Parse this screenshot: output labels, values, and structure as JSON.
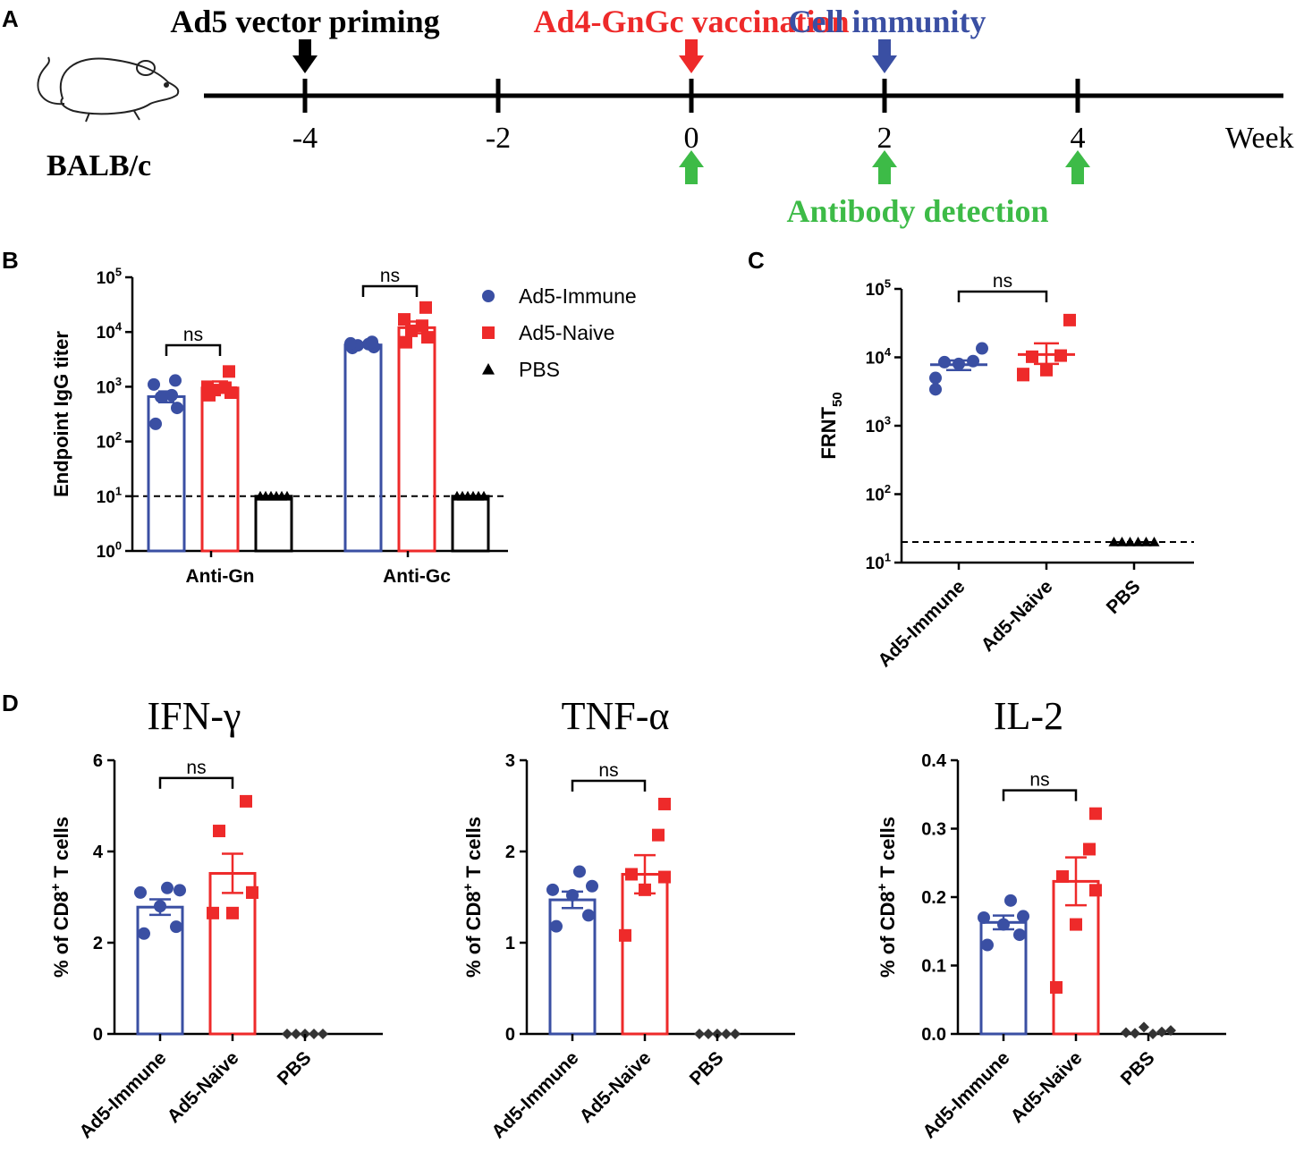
{
  "colors": {
    "immune": "#3a4fa3",
    "naive": "#ee2a2a",
    "pbs": "#000000",
    "antibody": "#3dbb47",
    "priming": "#000000"
  },
  "panel_labels": {
    "a": "A",
    "b": "B",
    "c": "C",
    "d": "D"
  },
  "timeline": {
    "mouse_label": "BALB/c",
    "week_label": "Week",
    "ticks": [
      -4,
      -2,
      0,
      2,
      4
    ],
    "tick_labels": [
      "-4",
      "-2",
      "0",
      "2",
      "4"
    ],
    "events": {
      "priming": {
        "label": "Ad5 vector priming",
        "week": -4
      },
      "vaccination": {
        "label": "Ad4-GnGc vaccination",
        "week": 0
      },
      "cell": {
        "label": "Cell immunity",
        "week": 2
      },
      "antibody": {
        "label": "Antibody detection",
        "weeks": [
          0,
          2,
          4
        ]
      }
    }
  },
  "chart_data": [
    {
      "id": "B",
      "type": "bar",
      "ylabel": "Endpoint IgG titer",
      "yscale": "log",
      "ylim": [
        1,
        100000
      ],
      "yticks": [
        {
          "base": "10",
          "exp": "0"
        },
        {
          "base": "10",
          "exp": "1"
        },
        {
          "base": "10",
          "exp": "2"
        },
        {
          "base": "10",
          "exp": "3"
        },
        {
          "base": "10",
          "exp": "4"
        },
        {
          "base": "10",
          "exp": "5"
        }
      ],
      "categories": [
        "Anti-Gn",
        "Anti-Gc"
      ],
      "detection_limit": 10,
      "legend": [
        "Ad5-Immune",
        "Ad5-Naive",
        "PBS"
      ],
      "series": [
        {
          "name": "Ad5-Immune",
          "marker": "circle",
          "means": [
            660,
            5800
          ],
          "sem_upper": [
            820,
            6300
          ],
          "sem_lower": [
            520,
            5400
          ],
          "points": [
            [
              210,
              410,
              650,
              700,
              1100,
              1300
            ],
            [
              5100,
              5300,
              5700,
              6000,
              6200,
              6600
            ]
          ]
        },
        {
          "name": "Ad5-Naive",
          "marker": "square",
          "means": [
            950,
            12000
          ],
          "sem_upper": [
            1250,
            15500
          ],
          "sem_lower": [
            820,
            9500
          ],
          "points": [
            [
              700,
              780,
              870,
              960,
              1000,
              1900
            ],
            [
              6500,
              8000,
              10500,
              13000,
              17000,
              28000
            ]
          ]
        },
        {
          "name": "PBS",
          "marker": "triangle",
          "means": [
            10,
            10
          ],
          "points": [
            [
              10,
              10,
              10,
              10,
              10,
              10
            ],
            [
              10,
              10,
              10,
              10,
              10,
              10
            ]
          ]
        }
      ],
      "annotations": [
        {
          "text": "ns",
          "category": "Anti-Gn"
        },
        {
          "text": "ns",
          "category": "Anti-Gc"
        }
      ]
    },
    {
      "id": "C",
      "type": "scatter",
      "ylabel_main": "FRNT",
      "ylabel_sub": "50",
      "yscale": "log",
      "ylim": [
        10,
        100000
      ],
      "yticks": [
        {
          "base": "10",
          "exp": "1"
        },
        {
          "base": "10",
          "exp": "2"
        },
        {
          "base": "10",
          "exp": "3"
        },
        {
          "base": "10",
          "exp": "4"
        },
        {
          "base": "10",
          "exp": "5"
        }
      ],
      "categories": [
        "Ad5-Immune",
        "Ad5-Naive",
        "PBS"
      ],
      "detection_limit": 20,
      "series": [
        {
          "name": "Ad5-Immune",
          "marker": "circle",
          "mean": 7800,
          "sem_upper": 9000,
          "sem_lower": 6500,
          "points": [
            3400,
            5000,
            8000,
            8500,
            8800,
            13500
          ]
        },
        {
          "name": "Ad5-Naive",
          "marker": "square",
          "mean": 11000,
          "sem_upper": 16000,
          "sem_lower": 8000,
          "points": [
            5500,
            5700,
            6500,
            10200,
            10600,
            35000
          ]
        },
        {
          "name": "PBS",
          "marker": "triangle",
          "points": [
            20,
            20,
            20,
            20,
            20,
            20
          ]
        }
      ],
      "annotations": [
        {
          "text": "ns",
          "between": [
            "Ad5-Immune",
            "Ad5-Naive"
          ]
        }
      ]
    },
    {
      "id": "D1",
      "type": "bar",
      "title": "IFN-γ",
      "ylabel": "% of CD8+ T cells",
      "ylim": [
        0,
        6
      ],
      "yticks": [
        "0",
        "2",
        "4",
        "6"
      ],
      "categories": [
        "Ad5-Immune",
        "Ad5-Naive",
        "PBS"
      ],
      "series": [
        {
          "name": "Ad5-Immune",
          "marker": "circle",
          "mean": 2.78,
          "sem": 0.17,
          "points": [
            2.2,
            2.35,
            2.8,
            3.1,
            3.15,
            3.2
          ]
        },
        {
          "name": "Ad5-Naive",
          "marker": "square",
          "mean": 3.52,
          "sem": 0.43,
          "points": [
            2.65,
            2.65,
            3.1,
            4.45,
            5.1,
            3.1
          ]
        },
        {
          "name": "PBS",
          "marker": "diamond",
          "mean": 0,
          "points": [
            0,
            0,
            0,
            0,
            0
          ]
        }
      ],
      "annotations": [
        {
          "text": "ns",
          "between": [
            "Ad5-Immune",
            "Ad5-Naive"
          ]
        }
      ]
    },
    {
      "id": "D2",
      "type": "bar",
      "title": "TNF-α",
      "ylabel": "% of CD8+ T cells",
      "ylim": [
        0,
        3
      ],
      "yticks": [
        "0",
        "1",
        "2",
        "3"
      ],
      "categories": [
        "Ad5-Immune",
        "Ad5-Naive",
        "PBS"
      ],
      "series": [
        {
          "name": "Ad5-Immune",
          "marker": "circle",
          "mean": 1.47,
          "sem": 0.09,
          "points": [
            1.18,
            1.3,
            1.52,
            1.58,
            1.62,
            1.78
          ]
        },
        {
          "name": "Ad5-Naive",
          "marker": "square",
          "mean": 1.75,
          "sem": 0.21,
          "points": [
            1.08,
            1.58,
            1.72,
            1.75,
            2.18,
            2.52
          ]
        },
        {
          "name": "PBS",
          "marker": "diamond",
          "mean": 0,
          "points": [
            0,
            0,
            0,
            0,
            0
          ]
        }
      ],
      "annotations": [
        {
          "text": "ns",
          "between": [
            "Ad5-Immune",
            "Ad5-Naive"
          ]
        }
      ]
    },
    {
      "id": "D3",
      "type": "bar",
      "title": "IL-2",
      "ylabel": "% of CD8+ T cells",
      "ylim": [
        0,
        0.4
      ],
      "yticks": [
        "0.0",
        "0.1",
        "0.2",
        "0.3",
        "0.4"
      ],
      "categories": [
        "Ad5-Immune",
        "Ad5-Naive",
        "PBS"
      ],
      "series": [
        {
          "name": "Ad5-Immune",
          "marker": "circle",
          "mean": 0.163,
          "sem": 0.01,
          "points": [
            0.13,
            0.145,
            0.16,
            0.17,
            0.172,
            0.195
          ]
        },
        {
          "name": "Ad5-Naive",
          "marker": "square",
          "mean": 0.223,
          "sem": 0.035,
          "points": [
            0.068,
            0.16,
            0.21,
            0.23,
            0.27,
            0.322
          ]
        },
        {
          "name": "PBS",
          "marker": "diamond",
          "mean": 0,
          "points": [
            0.002,
            0.001,
            0.01,
            0.0,
            0.003,
            0.005
          ]
        }
      ],
      "annotations": [
        {
          "text": "ns",
          "between": [
            "Ad5-Immune",
            "Ad5-Naive"
          ]
        }
      ]
    }
  ]
}
